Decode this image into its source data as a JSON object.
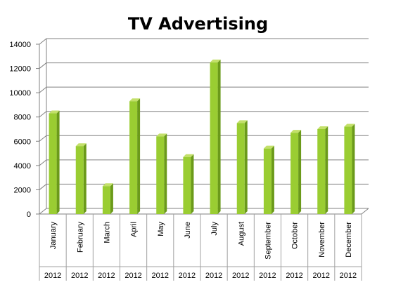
{
  "chart_data": {
    "type": "bar",
    "title": "TV Advertising",
    "xlabel": "",
    "ylabel": "",
    "categories": [
      "January",
      "February",
      "March",
      "April",
      "May",
      "June",
      "July",
      "August",
      "September",
      "October",
      "November",
      "December"
    ],
    "group_label": "2012",
    "values": [
      8300,
      5600,
      2300,
      9300,
      6400,
      4700,
      12500,
      7500,
      5400,
      6700,
      7000,
      7200
    ],
    "ylim": [
      0,
      14000
    ],
    "yticks": [
      0,
      2000,
      4000,
      6000,
      8000,
      10000,
      12000,
      14000
    ],
    "grid": true,
    "legend": "none",
    "colors": {
      "bar_front": "#9acd32",
      "bar_side": "#6b9a1a",
      "bar_top": "#c3e06a",
      "grid": "#808080"
    }
  }
}
